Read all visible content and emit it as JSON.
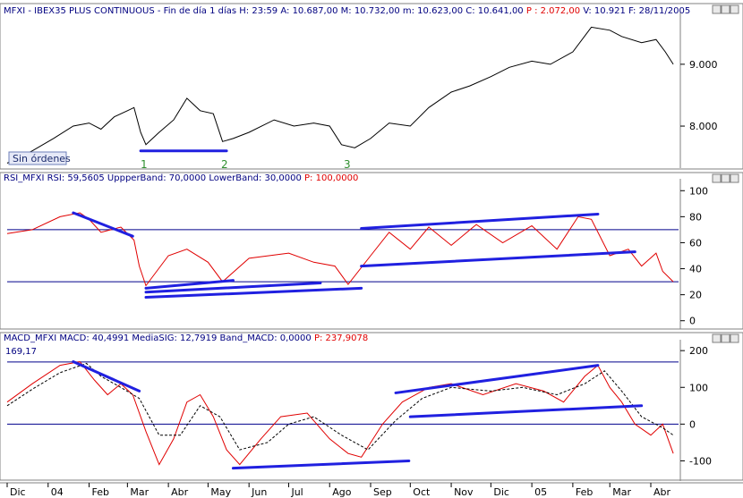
{
  "chart_data": [
    {
      "type": "line",
      "panel": "price",
      "title": "MFXI - IBEX35 PLUS CONTINUOUS - Fin de día 1 días",
      "header_fields": [
        "H: 23:59",
        "A: 10.687,00",
        "M: 10.732,00",
        "m: 10.623,00",
        "C: 10.641,00"
      ],
      "header_highlight": "P : 2.072,00",
      "header_tail": [
        "V: 10.921",
        "F: 28/11/2005"
      ],
      "yticks": [
        "9.000",
        "8.000"
      ],
      "ytick_values": [
        9000,
        8000
      ],
      "ylim": [
        7350,
        9750
      ],
      "badge": "Sin órdenes",
      "annotations": [
        "1",
        "2",
        "3"
      ],
      "series_color": "#000000",
      "points": [
        [
          "2003-12-01",
          7400
        ],
        [
          "2003-12-20",
          7600
        ],
        [
          "2004-01-05",
          7800
        ],
        [
          "2004-01-20",
          8000
        ],
        [
          "2004-02-01",
          8050
        ],
        [
          "2004-02-10",
          7950
        ],
        [
          "2004-02-20",
          8150
        ],
        [
          "2004-03-01",
          8250
        ],
        [
          "2004-03-06",
          8300
        ],
        [
          "2004-03-11",
          7900
        ],
        [
          "2004-03-15",
          7700
        ],
        [
          "2004-03-25",
          7900
        ],
        [
          "2004-04-05",
          8100
        ],
        [
          "2004-04-15",
          8450
        ],
        [
          "2004-04-25",
          8250
        ],
        [
          "2004-05-05",
          8200
        ],
        [
          "2004-05-12",
          7750
        ],
        [
          "2004-05-20",
          7800
        ],
        [
          "2004-06-01",
          7900
        ],
        [
          "2004-06-20",
          8100
        ],
        [
          "2004-07-05",
          8000
        ],
        [
          "2004-07-20",
          8050
        ],
        [
          "2004-08-01",
          8000
        ],
        [
          "2004-08-10",
          7700
        ],
        [
          "2004-08-20",
          7650
        ],
        [
          "2004-09-01",
          7800
        ],
        [
          "2004-09-15",
          8050
        ],
        [
          "2004-10-01",
          8000
        ],
        [
          "2004-10-15",
          8300
        ],
        [
          "2004-11-01",
          8550
        ],
        [
          "2004-11-15",
          8650
        ],
        [
          "2004-12-01",
          8800
        ],
        [
          "2004-12-15",
          8950
        ],
        [
          "2005-01-01",
          9050
        ],
        [
          "2005-01-15",
          9000
        ],
        [
          "2005-02-01",
          9200
        ],
        [
          "2005-02-15",
          9600
        ],
        [
          "2005-03-01",
          9550
        ],
        [
          "2005-03-10",
          9450
        ],
        [
          "2005-03-25",
          9350
        ],
        [
          "2005-04-05",
          9400
        ],
        [
          "2005-04-12",
          9200
        ],
        [
          "2005-04-18",
          9000
        ]
      ],
      "trendlines": [
        {
          "color": "#2020e0",
          "from": [
            "2004-03-11",
            7600
          ],
          "to": [
            "2004-05-15",
            7600
          ]
        }
      ]
    },
    {
      "type": "line",
      "panel": "rsi",
      "title": "RSI_MFXI",
      "header_fields": [
        "RSI: 59,5605",
        "UppperBand: 70,0000",
        "LowerBand: 30,0000"
      ],
      "header_highlight": "P: 100,0000",
      "yticks": [
        "100",
        "80",
        "60",
        "40",
        "20",
        "0"
      ],
      "ytick_values": [
        100,
        80,
        60,
        40,
        20,
        0
      ],
      "ylim": [
        -5,
        105
      ],
      "bands": [
        70,
        30
      ],
      "series_color": "#e00000",
      "points": [
        [
          "2003-12-01",
          67
        ],
        [
          "2003-12-20",
          70
        ],
        [
          "2004-01-10",
          80
        ],
        [
          "2004-01-25",
          83
        ],
        [
          "2004-02-01",
          78
        ],
        [
          "2004-02-10",
          68
        ],
        [
          "2004-02-25",
          72
        ],
        [
          "2004-03-06",
          62
        ],
        [
          "2004-03-10",
          42
        ],
        [
          "2004-03-15",
          27
        ],
        [
          "2004-04-01",
          50
        ],
        [
          "2004-04-15",
          55
        ],
        [
          "2004-05-01",
          45
        ],
        [
          "2004-05-12",
          30
        ],
        [
          "2004-06-01",
          48
        ],
        [
          "2004-07-01",
          52
        ],
        [
          "2004-07-20",
          45
        ],
        [
          "2004-08-05",
          42
        ],
        [
          "2004-08-15",
          28
        ],
        [
          "2004-09-01",
          50
        ],
        [
          "2004-09-15",
          68
        ],
        [
          "2004-10-01",
          55
        ],
        [
          "2004-10-15",
          72
        ],
        [
          "2004-11-01",
          58
        ],
        [
          "2004-11-20",
          74
        ],
        [
          "2004-12-10",
          60
        ],
        [
          "2005-01-01",
          73
        ],
        [
          "2005-01-20",
          55
        ],
        [
          "2005-02-05",
          80
        ],
        [
          "2005-02-15",
          78
        ],
        [
          "2005-03-01",
          50
        ],
        [
          "2005-03-15",
          55
        ],
        [
          "2005-03-25",
          42
        ],
        [
          "2005-04-05",
          52
        ],
        [
          "2005-04-10",
          38
        ],
        [
          "2005-04-18",
          30
        ]
      ],
      "trendlines": [
        {
          "color": "#2020e0",
          "from": [
            "2004-01-20",
            83
          ],
          "to": [
            "2004-03-05",
            65
          ]
        },
        {
          "color": "#2020e0",
          "from": [
            "2004-03-15",
            25
          ],
          "to": [
            "2004-05-20",
            31
          ]
        },
        {
          "color": "#2020e0",
          "from": [
            "2004-03-15",
            18
          ],
          "to": [
            "2004-08-25",
            25
          ]
        },
        {
          "color": "#2020e0",
          "from": [
            "2004-03-15",
            22
          ],
          "to": [
            "2004-07-25",
            29
          ]
        },
        {
          "color": "#2020e0",
          "from": [
            "2004-08-25",
            71
          ],
          "to": [
            "2005-02-20",
            82
          ]
        },
        {
          "color": "#2020e0",
          "from": [
            "2004-08-25",
            42
          ],
          "to": [
            "2005-03-20",
            53
          ]
        }
      ]
    },
    {
      "type": "line",
      "panel": "macd",
      "title": "MACD_MFXI",
      "header_fields": [
        "MACD: 40,4991",
        "MediaSIG: 12,7919",
        "Band_MACD: 0,0000"
      ],
      "header_highlight": "P: 237,9078",
      "corner_label": "169,17",
      "yticks": [
        "200",
        "100",
        "0",
        "-100"
      ],
      "ytick_values": [
        200,
        100,
        0,
        -100
      ],
      "ylim": [
        -150,
        215
      ],
      "bands": [
        169.17,
        0
      ],
      "series": [
        {
          "color": "#e00000",
          "dash": false,
          "points": [
            [
              "2003-12-01",
              60
            ],
            [
              "2003-12-20",
              110
            ],
            [
              "2004-01-10",
              160
            ],
            [
              "2004-01-25",
              170
            ],
            [
              "2004-02-05",
              120
            ],
            [
              "2004-02-15",
              80
            ],
            [
              "2004-02-25",
              110
            ],
            [
              "2004-03-05",
              80
            ],
            [
              "2004-03-15",
              -20
            ],
            [
              "2004-03-25",
              -110
            ],
            [
              "2004-04-05",
              -40
            ],
            [
              "2004-04-15",
              60
            ],
            [
              "2004-04-25",
              80
            ],
            [
              "2004-05-05",
              20
            ],
            [
              "2004-05-15",
              -70
            ],
            [
              "2004-05-25",
              -110
            ],
            [
              "2004-06-10",
              -40
            ],
            [
              "2004-06-25",
              20
            ],
            [
              "2004-07-15",
              30
            ],
            [
              "2004-08-01",
              -40
            ],
            [
              "2004-08-15",
              -80
            ],
            [
              "2004-08-25",
              -90
            ],
            [
              "2004-09-10",
              0
            ],
            [
              "2004-09-25",
              60
            ],
            [
              "2004-10-15",
              100
            ],
            [
              "2004-11-01",
              110
            ],
            [
              "2004-11-25",
              80
            ],
            [
              "2004-12-20",
              110
            ],
            [
              "2005-01-10",
              90
            ],
            [
              "2005-01-25",
              60
            ],
            [
              "2005-02-10",
              130
            ],
            [
              "2005-02-20",
              160
            ],
            [
              "2005-03-01",
              100
            ],
            [
              "2005-03-10",
              60
            ],
            [
              "2005-03-20",
              0
            ],
            [
              "2005-04-01",
              -30
            ],
            [
              "2005-04-10",
              0
            ],
            [
              "2005-04-18",
              -80
            ]
          ]
        },
        {
          "color": "#000000",
          "dash": true,
          "points": [
            [
              "2003-12-01",
              50
            ],
            [
              "2003-12-20",
              95
            ],
            [
              "2004-01-10",
              140
            ],
            [
              "2004-01-30",
              165
            ],
            [
              "2004-02-10",
              130
            ],
            [
              "2004-02-25",
              100
            ],
            [
              "2004-03-10",
              70
            ],
            [
              "2004-03-25",
              -30
            ],
            [
              "2004-04-10",
              -30
            ],
            [
              "2004-04-25",
              50
            ],
            [
              "2004-05-10",
              20
            ],
            [
              "2004-05-25",
              -70
            ],
            [
              "2004-06-15",
              -50
            ],
            [
              "2004-07-01",
              0
            ],
            [
              "2004-07-20",
              20
            ],
            [
              "2004-08-10",
              -30
            ],
            [
              "2004-08-30",
              -70
            ],
            [
              "2004-09-20",
              10
            ],
            [
              "2004-10-10",
              70
            ],
            [
              "2004-11-01",
              100
            ],
            [
              "2004-12-01",
              90
            ],
            [
              "2004-12-25",
              100
            ],
            [
              "2005-01-20",
              80
            ],
            [
              "2005-02-10",
              110
            ],
            [
              "2005-02-25",
              145
            ],
            [
              "2005-03-10",
              90
            ],
            [
              "2005-03-25",
              20
            ],
            [
              "2005-04-10",
              -10
            ],
            [
              "2005-04-18",
              -30
            ]
          ]
        }
      ],
      "trendlines": [
        {
          "color": "#2020e0",
          "from": [
            "2004-01-20",
            170
          ],
          "to": [
            "2004-03-10",
            90
          ]
        },
        {
          "color": "#2020e0",
          "from": [
            "2004-05-20",
            -120
          ],
          "to": [
            "2004-09-30",
            -100
          ]
        },
        {
          "color": "#2020e0",
          "from": [
            "2004-09-20",
            85
          ],
          "to": [
            "2005-02-20",
            160
          ]
        },
        {
          "color": "#2020e0",
          "from": [
            "2004-10-01",
            20
          ],
          "to": [
            "2005-03-25",
            50
          ]
        }
      ]
    }
  ],
  "x_axis": {
    "labels": [
      "Dic",
      "04",
      "Feb",
      "Mar",
      "Abr",
      "May",
      "Jun",
      "Jul",
      "Ago",
      "Sep",
      "Oct",
      "Nov",
      "Dic",
      "05",
      "Feb",
      "Mar",
      "Abr"
    ],
    "dates": [
      "2003-12-01",
      "2004-01-01",
      "2004-02-01",
      "2004-03-01",
      "2004-04-01",
      "2004-05-01",
      "2004-06-01",
      "2004-07-01",
      "2004-08-01",
      "2004-09-01",
      "2004-10-01",
      "2004-11-01",
      "2004-12-01",
      "2005-01-01",
      "2005-02-01",
      "2005-03-01",
      "2005-04-01"
    ]
  },
  "colors": {
    "header_text": "#000080",
    "highlight": "#e00000",
    "price": "#000000",
    "rsi": "#e00000",
    "band": "#00008b",
    "trend": "#2020e0",
    "annotation": "#2f8f2f"
  }
}
